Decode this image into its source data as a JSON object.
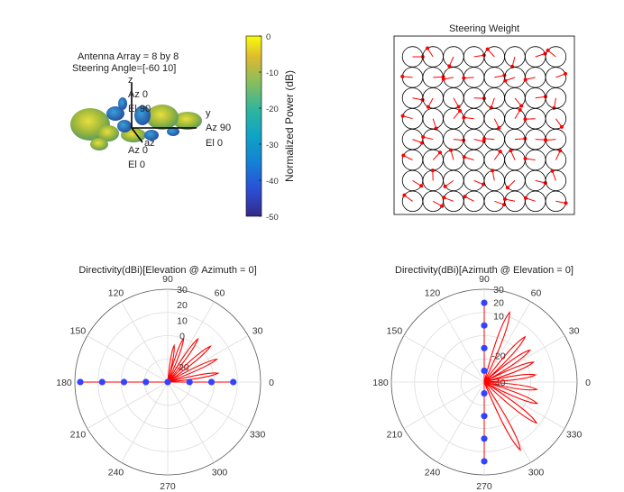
{
  "colors": {
    "pattern": "#ff0000",
    "markers": "#3344ff",
    "grid": "#dcdcdc",
    "axis": "#000000"
  },
  "pattern3d": {
    "info_lines": [
      "Antenna Array = 8 by 8",
      "Steering Angle=[-60 10]"
    ],
    "axis_labels": {
      "z": [
        "z",
        "Az 0",
        "El 90"
      ],
      "y": [
        "y",
        "Az 90",
        "El 0"
      ],
      "x": [
        "az",
        "Az 0",
        "El 0"
      ]
    }
  },
  "colorbar": {
    "label": "Normalized Power (dB)",
    "ticks": [
      0,
      -10,
      -20,
      -30,
      -40,
      -50
    ],
    "range": [
      -50,
      0
    ]
  },
  "steering_weights": {
    "title": "Steering Weight",
    "rows": 8,
    "cols": 8
  },
  "chart_data": [
    {
      "type": "polar",
      "title": "Directivity(dBi)[Elevation @ Azimuth = 0]",
      "angle_ticks": [
        0,
        30,
        60,
        90,
        120,
        150,
        180,
        210,
        240,
        270,
        300,
        330
      ],
      "radial_ticks": [
        30,
        20,
        10,
        0,
        -20
      ],
      "radial_range": [
        -30,
        30
      ],
      "lobes": [
        {
          "angle": 10,
          "value": 3
        },
        {
          "angle": 25,
          "value": 5
        },
        {
          "angle": 40,
          "value": 6
        },
        {
          "angle": 55,
          "value": 4
        },
        {
          "angle": 70,
          "value": 0
        },
        {
          "angle": 80,
          "value": -6
        }
      ],
      "lobe_width_deg": 9,
      "array_elements_x": [
        -8,
        -6,
        -4,
        -2,
        0,
        2,
        4,
        6
      ]
    },
    {
      "type": "polar",
      "title": "Directivity(dBi)[Azimuth @ Elevation = 0]",
      "angle_ticks": [
        0,
        30,
        60,
        90,
        120,
        150,
        180,
        210,
        240,
        270,
        300,
        330
      ],
      "radial_ticks": [
        30,
        20,
        10,
        -20,
        -40
      ],
      "radial_range": [
        -40,
        30
      ],
      "lobes": [
        {
          "angle": 70,
          "value": 16
        },
        {
          "angle": 48,
          "value": 6
        },
        {
          "angle": 35,
          "value": 2
        },
        {
          "angle": 22,
          "value": 0
        },
        {
          "angle": 8,
          "value": -1
        },
        {
          "angle": -8,
          "value": 0
        },
        {
          "angle": -22,
          "value": 3
        },
        {
          "angle": -38,
          "value": 10
        },
        {
          "angle": -62,
          "value": 18
        }
      ],
      "lobe_width_deg": 11,
      "array_elements_y": [
        7,
        5,
        3,
        1,
        -1,
        -3,
        -5,
        -7
      ]
    }
  ]
}
